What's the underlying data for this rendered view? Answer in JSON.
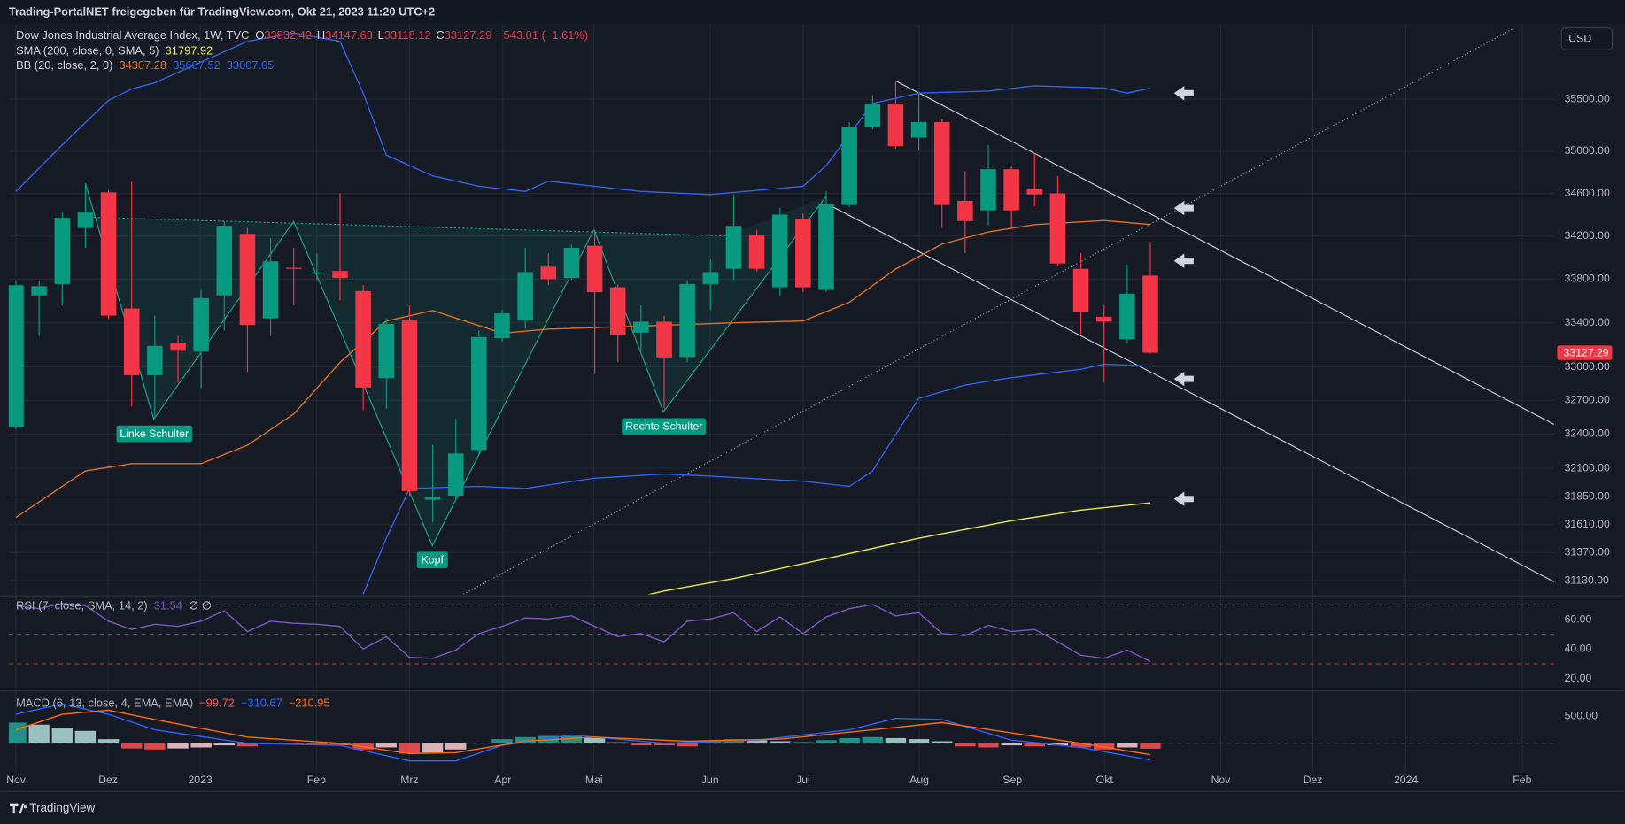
{
  "header": {
    "share_text": "Trading-PortalNET freigegeben für TradingView.com, Okt 21, 2023 11:20 UTC+2",
    "currency": "USD",
    "brand": "TradingView"
  },
  "chart_data": [
    {
      "type": "candlestick",
      "title": "Dow Jones Industrial Average Index, 1W, TVC",
      "ohlc_letters": [
        "O",
        "H",
        "L",
        "C"
      ],
      "change_label": "−543.01 (−1.61%)",
      "up_color": "#089981",
      "down_color": "#f23645",
      "open": [
        32464,
        33650,
        33755,
        34275,
        34610,
        33530,
        32925,
        33220,
        33140,
        33650,
        34220,
        33440,
        33905,
        33860,
        33875,
        33690,
        32900,
        33420,
        31825,
        31860,
        32260,
        33260,
        33420,
        33915,
        33810,
        34110,
        33725,
        33310,
        33410,
        33090,
        33755,
        33895,
        34210,
        33725,
        34360,
        33700,
        34490,
        35230,
        35460,
        35130,
        35280,
        34530,
        34440,
        34830,
        34640,
        34600,
        33895,
        33455,
        33250,
        33832.42
      ],
      "high": [
        33790,
        33790,
        34420,
        34690,
        34630,
        34710,
        33465,
        33280,
        33700,
        34340,
        34275,
        34180,
        34090,
        34040,
        34600,
        33745,
        33440,
        33560,
        32305,
        32535,
        33330,
        33520,
        34090,
        34040,
        34120,
        34255,
        33750,
        33560,
        33465,
        33790,
        33980,
        34590,
        34255,
        34465,
        34410,
        34619,
        35280,
        35540,
        35680,
        35560,
        35310,
        34810,
        35060,
        34860,
        34980,
        34760,
        34040,
        33560,
        33935,
        34147.63
      ],
      "low": [
        32440,
        33280,
        33560,
        34090,
        33435,
        32645,
        32535,
        32860,
        32810,
        33330,
        32955,
        33280,
        33560,
        33790,
        33605,
        32610,
        32625,
        31860,
        31630,
        31815,
        32210,
        33230,
        33345,
        33745,
        33790,
        32935,
        33045,
        33140,
        32625,
        33045,
        33515,
        33790,
        33870,
        33650,
        33680,
        33680,
        34470,
        35210,
        35025,
        35010,
        34275,
        34040,
        34300,
        34275,
        34480,
        33920,
        33300,
        32860,
        33210,
        33118.12
      ],
      "close": [
        33744,
        33735,
        34370,
        34420,
        33465,
        32925,
        33190,
        33145,
        33625,
        34295,
        33380,
        33965,
        33895,
        33860,
        33810,
        32815,
        33390,
        31900,
        31850,
        32230,
        33270,
        33485,
        33865,
        33800,
        34090,
        33680,
        33290,
        33410,
        33085,
        33755,
        33865,
        34295,
        33895,
        34400,
        33725,
        34500,
        35230,
        35460,
        35050,
        35280,
        34490,
        34340,
        34830,
        34440,
        34590,
        33945,
        33500,
        33410,
        33665,
        33127.29
      ],
      "indicators": [
        {
          "name": "SMA (200, close, 0, SMA, 5)",
          "lines": [
            {
              "color": "#e8ec4a",
              "x": [
                26,
                28,
                31,
                35,
                39,
                43,
                46,
                49
              ],
              "values": [
                30950,
                31042,
                31148,
                31317,
                31493,
                31643,
                31735,
                31797.92
              ]
            }
          ]
        },
        {
          "name": "BB (20, close, 2, 0)",
          "lines": [
            {
              "color": "#e0701f",
              "x": [
                0,
                3,
                5,
                8,
                10,
                12,
                14,
                16,
                18,
                21,
                23,
                27,
                31,
                34,
                36,
                38,
                40,
                42,
                44,
                47,
                49
              ],
              "values": [
                31672,
                32076,
                32140,
                32140,
                32302,
                32579,
                33040,
                33416,
                33512,
                33305,
                33342,
                33370,
                33400,
                33416,
                33587,
                33893,
                34125,
                34238,
                34306,
                34345,
                34307.28
              ]
            },
            {
              "color": "#2f62e8",
              "x": [
                0,
                2,
                4,
                5,
                6,
                8,
                10,
                12,
                14,
                15,
                16,
                18,
                20,
                22,
                23,
                25,
                27,
                30,
                34,
                35,
                37,
                39,
                42,
                44,
                47,
                48,
                49
              ],
              "values": [
                34619,
                35061,
                35490,
                35600,
                35661,
                35863,
                36066,
                36148,
                36066,
                35560,
                34963,
                34766,
                34668,
                34619,
                34716,
                34668,
                34619,
                34589,
                34668,
                34864,
                35460,
                35560,
                35580,
                35631,
                35610,
                35560,
                35607.52
              ]
            },
            {
              "color": "#2f62e8",
              "x": [
                14,
                15,
                16,
                17,
                20,
                22,
                25,
                28,
                30,
                34,
                36,
                37,
                39,
                41,
                43,
                46,
                47,
                49
              ],
              "values": [
                30500,
                31015,
                31493,
                31923,
                31941,
                31923,
                32013,
                32049,
                32031,
                31986,
                31941,
                32076,
                32718,
                32837,
                32903,
                32978,
                33025,
                33007.05
              ]
            }
          ]
        }
      ],
      "annotations": [
        "Linke Schulter",
        "Kopf",
        "Rechte Schulter"
      ],
      "log_scale": true,
      "grid": true,
      "xlim": [
        -0.31,
        66.44
      ],
      "xticks": [
        {
          "value": 0,
          "label": "Nov"
        },
        {
          "value": 3.98,
          "label": "Dez"
        },
        {
          "value": 7.96,
          "label": "2023"
        },
        {
          "value": 12.98,
          "label": "Feb"
        },
        {
          "value": 17.0,
          "label": "Mrz"
        },
        {
          "value": 21.03,
          "label": "Apr"
        },
        {
          "value": 24.97,
          "label": "Mai"
        },
        {
          "value": 29.98,
          "label": "Jun"
        },
        {
          "value": 34.0,
          "label": "Jul"
        },
        {
          "value": 39.02,
          "label": "Aug"
        },
        {
          "value": 43.04,
          "label": "Sep"
        },
        {
          "value": 47.02,
          "label": "Okt"
        },
        {
          "value": 52.04,
          "label": "Nov"
        },
        {
          "value": 56.02,
          "label": "Dez"
        },
        {
          "value": 60.04,
          "label": "2024"
        },
        {
          "value": 65.06,
          "label": "Feb"
        }
      ],
      "ylim": [
        31015,
        36229
      ],
      "yticks": [
        {
          "value": 31130,
          "label": "31130.00"
        },
        {
          "value": 31370,
          "label": "31370.00"
        },
        {
          "value": 31610,
          "label": "31610.00"
        },
        {
          "value": 31850,
          "label": "31850.00"
        },
        {
          "value": 32100,
          "label": "32100.00"
        },
        {
          "value": 32400,
          "label": "32400.00"
        },
        {
          "value": 32700,
          "label": "32700.00"
        },
        {
          "value": 33000,
          "label": "33000.00"
        },
        {
          "value": 33400,
          "label": "33400.00"
        },
        {
          "value": 33800,
          "label": "33800.00"
        },
        {
          "value": 34200,
          "label": "34200.00"
        },
        {
          "value": 34600,
          "label": "34600.00"
        },
        {
          "value": 35000,
          "label": "35000.00"
        },
        {
          "value": 35500,
          "label": "35500.00"
        }
      ]
    },
    {
      "type": "line",
      "title": "RSI (7, close, SMA, 14, 2)",
      "color": "#7e57c2",
      "extra_label": "∅ ∅",
      "values": [
        69.5,
        67.4,
        70.9,
        69.5,
        58.9,
        53.3,
        56.8,
        55.4,
        58.9,
        66.0,
        51.9,
        58.9,
        57.5,
        56.8,
        55.4,
        40.0,
        48.4,
        34.4,
        33.7,
        39.3,
        50.5,
        55.4,
        61.1,
        60.4,
        62.5,
        55.4,
        48.4,
        50.5,
        44.9,
        58.9,
        60.4,
        64.6,
        51.9,
        61.8,
        50.5,
        61.8,
        67.4,
        70.2,
        62.5,
        64.6,
        50.5,
        49.1,
        56.1,
        51.9,
        53.3,
        44.9,
        35.8,
        33.7,
        39.3,
        31.54
      ],
      "bands": [
        {
          "value": 70,
          "color": "#3f8f52"
        },
        {
          "value": 50,
          "color": "#5d606b"
        },
        {
          "value": 30,
          "color": "#b8333f"
        }
      ],
      "ylim": [
        12.6,
        74.4
      ],
      "yticks": [
        {
          "value": 20,
          "label": "20.00"
        },
        {
          "value": 40,
          "label": "40.00"
        },
        {
          "value": 60,
          "label": "60.00"
        }
      ]
    },
    {
      "type": "macd",
      "title": "MACD (6, 13, close, 4, EMA, EMA)",
      "histogram": [
        385,
        346,
        288,
        231,
        77,
        -96,
        -115,
        -96,
        -77,
        -38,
        -58,
        -19,
        -19,
        -19,
        -38,
        -115,
        -77,
        -192,
        -173,
        -115,
        5,
        77,
        115,
        135,
        135,
        96,
        19,
        -38,
        -38,
        -58,
        38,
        77,
        58,
        38,
        19,
        58,
        96,
        115,
        96,
        77,
        38,
        -58,
        -77,
        -38,
        -58,
        -38,
        -77,
        -115,
        -77,
        -99.72
      ],
      "histogram_colors": [
        "#26a69a",
        "#b2dfdb",
        "#ffcdd2",
        "#ff5252"
      ],
      "lines": [
        {
          "color": "#2962ff",
          "x": [
            0,
            2,
            4,
            6,
            10,
            14,
            17,
            19,
            21,
            24,
            28,
            32,
            36,
            38,
            40,
            43,
            46,
            49
          ],
          "values": [
            538,
            731,
            538,
            250,
            0,
            -38,
            -327,
            -327,
            -38,
            154,
            0,
            58,
            250,
            462,
            442,
            58,
            -77,
            -310.67
          ]
        },
        {
          "color": "#ff6d00",
          "x": [
            0,
            2,
            4,
            6,
            10,
            14,
            17,
            19,
            22,
            25,
            29,
            33,
            37,
            40,
            43,
            46,
            49
          ],
          "values": [
            250,
            538,
            615,
            442,
            115,
            0,
            -192,
            -173,
            38,
            115,
            38,
            77,
            250,
            385,
            192,
            0,
            -210.95
          ]
        }
      ],
      "legend_values": [
        "−99.72",
        "−310.67",
        "−210.95"
      ],
      "ylim": [
        -519,
        962
      ],
      "yticks": [
        {
          "value": 500,
          "label": "500.00"
        }
      ]
    }
  ]
}
